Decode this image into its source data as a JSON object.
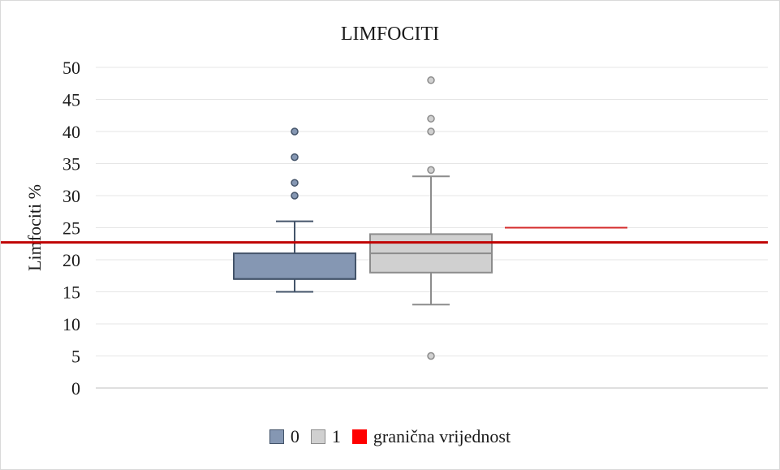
{
  "chart_data": {
    "type": "box",
    "title": "LIMFOCITI",
    "ylabel": "Limfociti %",
    "xlabel": "",
    "ylim": [
      0,
      50
    ],
    "yticks": [
      0,
      5,
      10,
      15,
      20,
      25,
      30,
      35,
      40,
      45,
      50
    ],
    "grid": true,
    "legend_position": "bottom",
    "series": [
      {
        "name": "0",
        "color": "#8597b3",
        "edge_color": "#44546a",
        "whisker_low": 15,
        "q1": 17,
        "median": 17,
        "q3": 21,
        "whisker_high": 26,
        "outliers": [
          30,
          32,
          36,
          40
        ]
      },
      {
        "name": "1",
        "color": "#d0d0d0",
        "edge_color": "#8c8c8c",
        "whisker_low": 13,
        "q1": 18,
        "median": 21,
        "q3": 24,
        "whisker_high": 33,
        "outliers": [
          5,
          34,
          40,
          42,
          48
        ]
      }
    ],
    "threshold": {
      "name": "granična vrijednost",
      "value": 22.7,
      "color": "#c00000",
      "legend_color": "#ff0000"
    },
    "threshold_marker": {
      "value": 25,
      "color": "#d42a2a"
    }
  }
}
